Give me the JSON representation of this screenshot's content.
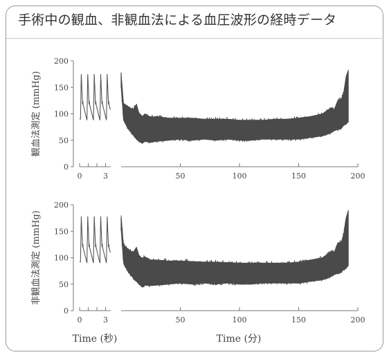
{
  "title": "手術中の観血、非観血法による血圧波形の経時データ",
  "chart_data": [
    {
      "type": "line",
      "name": "invasive",
      "ylabel": "観血法測定 (mmHg)",
      "ylim": [
        0,
        200
      ],
      "yticks": [
        0,
        50,
        100,
        150,
        200
      ],
      "left_panel": {
        "xlabel": "Time (秒)",
        "xlim": [
          0,
          3.6
        ],
        "xticks": [
          0,
          1,
          2,
          3
        ],
        "xtick_labels": [
          "0",
          "",
          "",
          "3"
        ],
        "beats": [
          0.1,
          0.85,
          1.6,
          2.35,
          3.1
        ],
        "systolic": 175,
        "diastolic": 88
      },
      "right_panel": {
        "xlabel": "Time (分)",
        "xlim": [
          0,
          200
        ],
        "xticks": [
          50,
          100,
          150,
          200
        ],
        "envelope": {
          "time": [
            0,
            2,
            5,
            10,
            13,
            15,
            18,
            20,
            25,
            30,
            40,
            50,
            60,
            70,
            80,
            90,
            100,
            110,
            120,
            130,
            140,
            150,
            160,
            170,
            175,
            178,
            180,
            183,
            186,
            188,
            190,
            192
          ],
          "upper": [
            178,
            120,
            115,
            108,
            118,
            102,
            95,
            100,
            94,
            95,
            92,
            92,
            92,
            90,
            90,
            90,
            88,
            88,
            88,
            90,
            90,
            92,
            95,
            100,
            108,
            112,
            108,
            125,
            128,
            140,
            170,
            183
          ],
          "lower": [
            150,
            88,
            75,
            60,
            52,
            48,
            44,
            48,
            46,
            48,
            50,
            52,
            50,
            52,
            50,
            52,
            50,
            50,
            52,
            52,
            52,
            52,
            55,
            58,
            62,
            65,
            68,
            70,
            72,
            78,
            80,
            85
          ]
        }
      }
    },
    {
      "type": "line",
      "name": "noninvasive",
      "ylabel": "非観血法測定 (mmHg)",
      "ylim": [
        0,
        200
      ],
      "yticks": [
        0,
        50,
        100,
        150,
        200
      ],
      "left_panel": {
        "xlabel": "Time (秒)",
        "xlim": [
          0,
          3.6
        ],
        "xticks": [
          0,
          1,
          2,
          3
        ],
        "xtick_labels": [
          "0",
          "",
          "",
          "3"
        ],
        "beats": [
          0.1,
          0.85,
          1.6,
          2.35,
          3.1
        ],
        "systolic": 178,
        "diastolic": 90
      },
      "right_panel": {
        "xlabel": "Time (分)",
        "xlim": [
          0,
          200
        ],
        "xticks": [
          50,
          100,
          150,
          200
        ],
        "envelope": {
          "time": [
            0,
            2,
            5,
            10,
            13,
            15,
            18,
            20,
            25,
            30,
            40,
            50,
            60,
            70,
            80,
            90,
            100,
            110,
            120,
            130,
            140,
            150,
            160,
            170,
            175,
            178,
            180,
            183,
            186,
            188,
            190,
            192
          ],
          "upper": [
            180,
            125,
            118,
            110,
            120,
            105,
            98,
            102,
            96,
            96,
            94,
            94,
            93,
            92,
            92,
            91,
            90,
            90,
            90,
            90,
            90,
            92,
            96,
            100,
            108,
            112,
            110,
            128,
            130,
            145,
            175,
            190
          ],
          "lower": [
            152,
            90,
            76,
            62,
            55,
            50,
            44,
            48,
            47,
            48,
            50,
            52,
            50,
            52,
            50,
            52,
            50,
            50,
            52,
            52,
            52,
            52,
            55,
            58,
            62,
            65,
            68,
            70,
            72,
            78,
            80,
            85
          ]
        }
      }
    }
  ],
  "colors": {
    "trace": "#555555",
    "band": "#4a4a4a",
    "axis": "#777777"
  }
}
